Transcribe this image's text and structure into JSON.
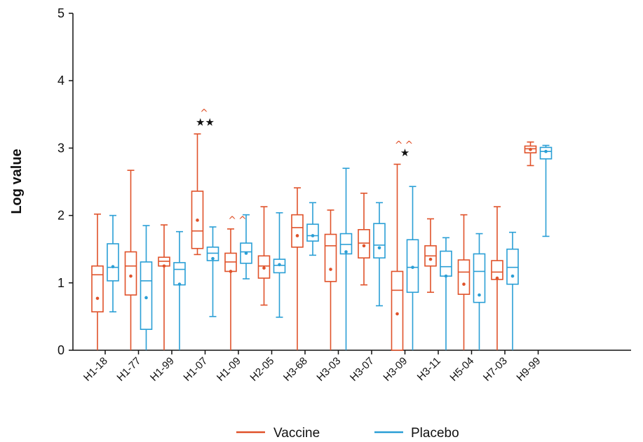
{
  "chart_data": {
    "type": "box",
    "ylabel": "Log value",
    "xlabel": "",
    "ylim": [
      0,
      5
    ],
    "yticks": [
      0,
      1,
      2,
      3,
      4,
      5
    ],
    "grid": false,
    "legend_position": "bottom-center",
    "categories": [
      "H1-18",
      "H1-77",
      "H1-99",
      "H1-07",
      "H1-09",
      "H2-05",
      "H3-68",
      "H3-03",
      "H3-07",
      "H3-09",
      "H3-11",
      "H5-04",
      "H7-03",
      "H9-99"
    ],
    "series": [
      {
        "name": "Vaccine",
        "color": "#e0522a",
        "boxes": [
          {
            "min": 0.0,
            "q1": 0.57,
            "median": 1.12,
            "q3": 1.25,
            "max": 2.02,
            "mean": 0.77
          },
          {
            "min": 0.0,
            "q1": 0.82,
            "median": 1.25,
            "q3": 1.46,
            "max": 2.67,
            "mean": 1.1
          },
          {
            "min": 0.0,
            "q1": 1.25,
            "median": 1.32,
            "q3": 1.38,
            "max": 1.86,
            "mean": 1.25
          },
          {
            "min": 1.42,
            "q1": 1.51,
            "median": 1.77,
            "q3": 2.36,
            "max": 3.21,
            "mean": 1.93
          },
          {
            "min": 0.0,
            "q1": 1.17,
            "median": 1.31,
            "q3": 1.44,
            "max": 1.8,
            "mean": 1.17
          },
          {
            "min": 0.67,
            "q1": 1.07,
            "median": 1.25,
            "q3": 1.4,
            "max": 2.13,
            "mean": 1.22
          },
          {
            "min": 0.0,
            "q1": 1.53,
            "median": 1.82,
            "q3": 2.01,
            "max": 2.41,
            "mean": 1.7
          },
          {
            "min": 0.0,
            "q1": 1.02,
            "median": 1.55,
            "q3": 1.72,
            "max": 2.08,
            "mean": 1.2
          },
          {
            "min": 0.97,
            "q1": 1.37,
            "median": 1.59,
            "q3": 1.79,
            "max": 2.33,
            "mean": 1.55
          },
          {
            "min": 0.0,
            "q1": 0.0,
            "median": 0.89,
            "q3": 1.17,
            "max": 2.76,
            "mean": 0.54
          },
          {
            "min": 0.86,
            "q1": 1.25,
            "median": 1.4,
            "q3": 1.55,
            "max": 1.95,
            "mean": 1.35
          },
          {
            "min": 0.0,
            "q1": 0.83,
            "median": 1.16,
            "q3": 1.34,
            "max": 2.01,
            "mean": 0.98
          },
          {
            "min": 0.0,
            "q1": 1.05,
            "median": 1.16,
            "q3": 1.33,
            "max": 2.13,
            "mean": 1.07
          },
          {
            "min": 2.74,
            "q1": 2.93,
            "median": 2.99,
            "q3": 3.03,
            "max": 3.09,
            "mean": 2.98
          }
        ]
      },
      {
        "name": "Placebo",
        "color": "#2a9fd6",
        "boxes": [
          {
            "min": 0.57,
            "q1": 1.03,
            "median": 1.23,
            "q3": 1.58,
            "max": 2.0,
            "mean": 1.24
          },
          {
            "min": 0.0,
            "q1": 0.31,
            "median": 1.03,
            "q3": 1.31,
            "max": 1.85,
            "mean": 0.78
          },
          {
            "min": 0.0,
            "q1": 0.97,
            "median": 1.2,
            "q3": 1.3,
            "max": 1.76,
            "mean": 0.98
          },
          {
            "min": 0.5,
            "q1": 1.33,
            "median": 1.44,
            "q3": 1.53,
            "max": 1.83,
            "mean": 1.36
          },
          {
            "min": 1.06,
            "q1": 1.29,
            "median": 1.46,
            "q3": 1.59,
            "max": 2.01,
            "mean": 1.44
          },
          {
            "min": 0.49,
            "q1": 1.15,
            "median": 1.26,
            "q3": 1.35,
            "max": 2.04,
            "mean": 1.27
          },
          {
            "min": 1.41,
            "q1": 1.62,
            "median": 1.7,
            "q3": 1.87,
            "max": 2.19,
            "mean": 1.7
          },
          {
            "min": 0.0,
            "q1": 1.43,
            "median": 1.57,
            "q3": 1.73,
            "max": 2.7,
            "mean": 1.46
          },
          {
            "min": 0.66,
            "q1": 1.37,
            "median": 1.56,
            "q3": 1.88,
            "max": 2.19,
            "mean": 1.52
          },
          {
            "min": 0.0,
            "q1": 0.86,
            "median": 1.23,
            "q3": 1.64,
            "max": 2.43,
            "mean": 1.23
          },
          {
            "min": 0.0,
            "q1": 1.1,
            "median": 1.24,
            "q3": 1.47,
            "max": 1.67,
            "mean": 1.1
          },
          {
            "min": 0.0,
            "q1": 0.71,
            "median": 1.17,
            "q3": 1.43,
            "max": 1.73,
            "mean": 0.82
          },
          {
            "min": 0.0,
            "q1": 0.98,
            "median": 1.23,
            "q3": 1.5,
            "max": 1.75,
            "mean": 1.1
          },
          {
            "min": 1.69,
            "q1": 2.84,
            "median": 2.95,
            "q3": 3.01,
            "max": 3.04,
            "mean": 2.95
          }
        ]
      }
    ],
    "annotations": [
      {
        "category": "H1-07",
        "text": "^",
        "color": "#e0522a",
        "y": 3.47
      },
      {
        "category": "H1-07",
        "text": "★★",
        "color": "#111111",
        "y": 3.33
      },
      {
        "category": "H1-09",
        "text": "^^",
        "color": "#e0522a",
        "y": 1.88
      },
      {
        "category": "H3-09",
        "text": "^^",
        "color": "#e0522a",
        "y": 3.0
      },
      {
        "category": "H3-09",
        "text": "★",
        "color": "#111111",
        "y": 2.88
      }
    ]
  }
}
